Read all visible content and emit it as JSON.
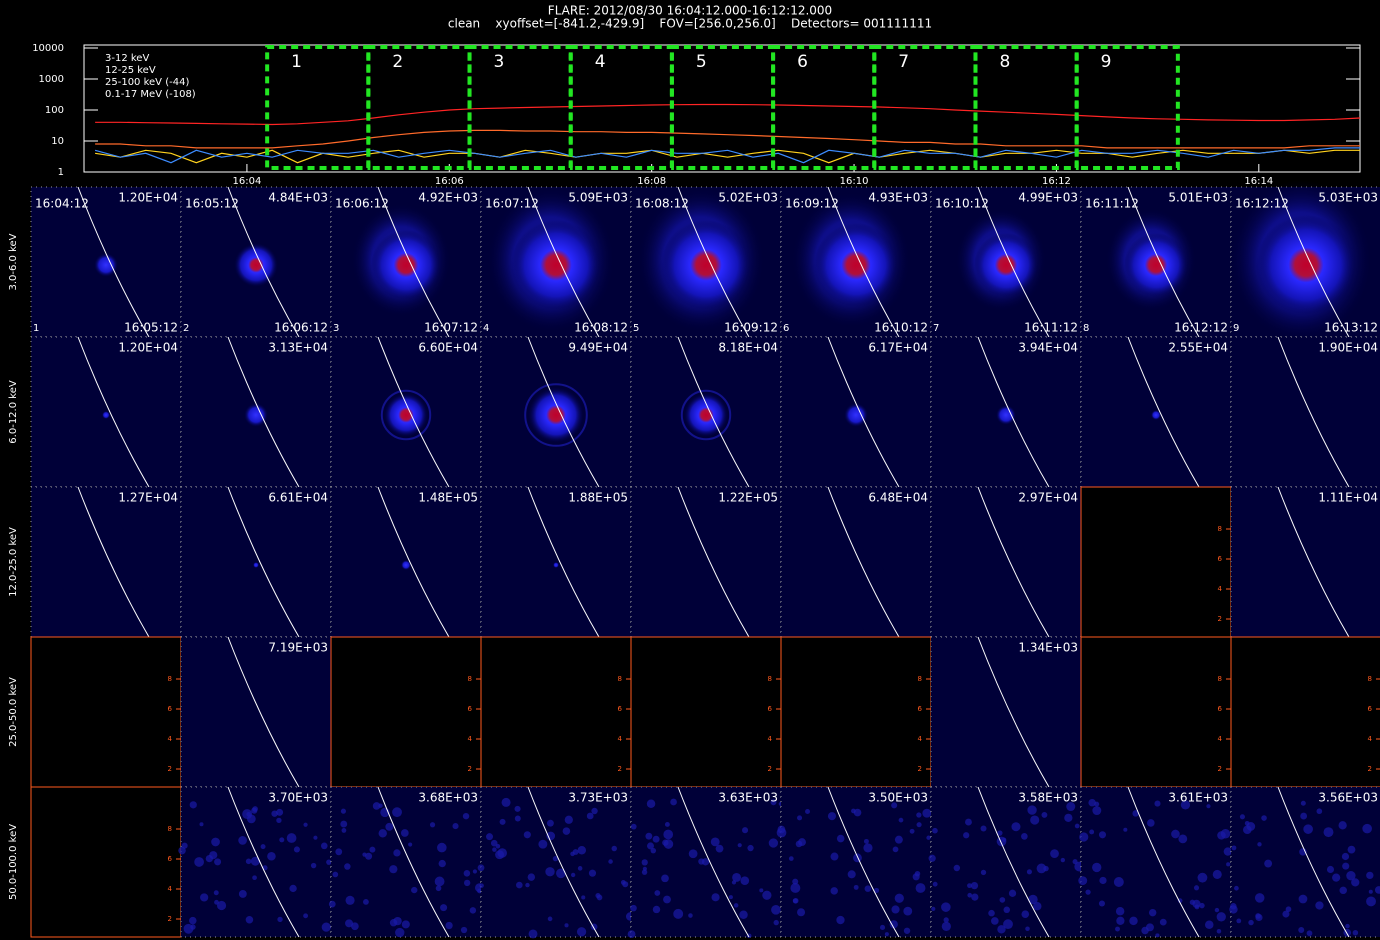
{
  "chart_data": {
    "type": "line",
    "title": "FLARE: 2012/08/30 16:04:12.000-16:12:12.000",
    "subtitle": "clean    xyoffset=[-841.2,-429.9]    FOV=[256.0,256.0]    Detectors= 001111111",
    "x": [
      2.5,
      2.75,
      3,
      3.25,
      3.5,
      3.75,
      4,
      4.25,
      4.5,
      4.75,
      5,
      5.25,
      5.5,
      5.75,
      6,
      6.25,
      6.5,
      6.75,
      7,
      7.25,
      7.5,
      7.75,
      8,
      8.25,
      8.5,
      8.75,
      9,
      9.25,
      9.5,
      9.75,
      10,
      10.25,
      10.5,
      10.75,
      11,
      11.25,
      11.5,
      11.75,
      12,
      12.25,
      12.5,
      12.75,
      13,
      13.25,
      13.5,
      13.75,
      14,
      14.25,
      14.5,
      14.75,
      15
    ],
    "series": [
      {
        "name": "3-12 keV",
        "color": "#ff2424",
        "values": [
          40,
          40,
          39,
          38,
          37,
          36,
          35,
          34,
          36,
          40,
          45,
          55,
          70,
          85,
          100,
          110,
          115,
          120,
          125,
          130,
          135,
          140,
          145,
          148,
          150,
          150,
          148,
          145,
          140,
          135,
          130,
          125,
          118,
          110,
          100,
          92,
          85,
          78,
          72,
          66,
          60,
          55,
          52,
          50,
          48,
          47,
          46,
          46,
          48,
          50,
          55
        ]
      },
      {
        "name": "12-25 keV",
        "color": "#ff6a2a",
        "values": [
          8,
          8,
          7,
          7,
          6,
          6,
          6,
          6,
          7,
          8,
          10,
          13,
          16,
          19,
          21,
          22,
          22,
          21,
          21,
          20,
          20,
          19,
          19,
          18,
          17,
          16,
          15,
          14,
          13,
          12,
          11,
          10,
          9,
          9,
          8,
          8,
          7,
          7,
          7,
          7,
          6,
          6,
          6,
          6,
          6,
          6,
          6,
          6,
          7,
          7,
          7
        ]
      },
      {
        "name": "25-100 keV (-44)",
        "color": "#ffd21e",
        "values": [
          4,
          3,
          5,
          4,
          2,
          4,
          3,
          5,
          2,
          4,
          3,
          4,
          5,
          3,
          4,
          4,
          3,
          5,
          4,
          3,
          4,
          4,
          5,
          3,
          4,
          3,
          4,
          5,
          4,
          2,
          4,
          3,
          4,
          5,
          4,
          3,
          4,
          4,
          5,
          4,
          4,
          3,
          4,
          5,
          4,
          4,
          4,
          5,
          4,
          5,
          5
        ]
      },
      {
        "name": "0.1-17 MeV (-108)",
        "color": "#3d8cff",
        "values": [
          5,
          3,
          4,
          2,
          5,
          3,
          4,
          3,
          5,
          4,
          4,
          5,
          3,
          4,
          5,
          4,
          3,
          4,
          5,
          3,
          4,
          3,
          5,
          4,
          4,
          5,
          3,
          4,
          2,
          5,
          4,
          3,
          5,
          4,
          4,
          3,
          5,
          4,
          3,
          5,
          4,
          4,
          5,
          4,
          3,
          5,
          4,
          5,
          5,
          6,
          6
        ]
      }
    ],
    "xlim": [
      2.39,
      15.0
    ],
    "xticks": [
      {
        "value": 4,
        "label": "16:04"
      },
      {
        "value": 6,
        "label": "16:06"
      },
      {
        "value": 8,
        "label": "16:08"
      },
      {
        "value": 10,
        "label": "16:10"
      },
      {
        "value": 12,
        "label": "16:12"
      },
      {
        "value": 14,
        "label": "16:14"
      }
    ],
    "ylim": [
      1,
      10000
    ],
    "yticks": [
      1,
      10,
      100,
      1000,
      10000
    ],
    "log_y": true,
    "legend": "upper left",
    "intervals": [
      {
        "label": "1",
        "start": 4.2,
        "end": 5.2
      },
      {
        "label": "2",
        "start": 5.2,
        "end": 6.2
      },
      {
        "label": "3",
        "start": 6.2,
        "end": 7.2
      },
      {
        "label": "4",
        "start": 7.2,
        "end": 8.2
      },
      {
        "label": "5",
        "start": 8.2,
        "end": 9.2
      },
      {
        "label": "6",
        "start": 9.2,
        "end": 10.2
      },
      {
        "label": "7",
        "start": 10.2,
        "end": 11.2
      },
      {
        "label": "8",
        "start": 11.2,
        "end": 12.2
      },
      {
        "label": "9",
        "start": 12.2,
        "end": 13.2
      }
    ]
  },
  "image_grid": {
    "rows": [
      {
        "label": "3.0-6.0 keV",
        "cells": [
          {
            "start": "16:04:12",
            "peak": "1.20E+04",
            "index": "1",
            "end": "16:05:12"
          },
          {
            "start": "16:05:12",
            "peak": "4.84E+03",
            "index": "2",
            "end": "16:06:12"
          },
          {
            "start": "16:06:12",
            "peak": "4.92E+03",
            "index": "3",
            "end": "16:07:12"
          },
          {
            "start": "16:07:12",
            "peak": "5.09E+03",
            "index": "4",
            "end": "16:08:12"
          },
          {
            "start": "16:08:12",
            "peak": "5.02E+03",
            "index": "5",
            "end": "16:09:12"
          },
          {
            "start": "16:09:12",
            "peak": "4.93E+03",
            "index": "6",
            "end": "16:10:12"
          },
          {
            "start": "16:10:12",
            "peak": "4.99E+03",
            "index": "7",
            "end": "16:11:12"
          },
          {
            "start": "16:11:12",
            "peak": "5.01E+03",
            "index": "8",
            "end": "16:12:12"
          },
          {
            "start": "16:12:12",
            "peak": "5.03E+03",
            "index": "9",
            "end": "16:13:12"
          }
        ]
      },
      {
        "label": "6.0-12.0 keV",
        "cells": [
          {
            "peak": "1.20E+04"
          },
          {
            "peak": "3.13E+04"
          },
          {
            "peak": "6.60E+04"
          },
          {
            "peak": "9.49E+04"
          },
          {
            "peak": "8.18E+04"
          },
          {
            "peak": "6.17E+04"
          },
          {
            "peak": "3.94E+04"
          },
          {
            "peak": "2.55E+04"
          },
          {
            "peak": "1.90E+04"
          }
        ]
      },
      {
        "label": "12.0-25.0 keV",
        "cells": [
          {
            "peak": "1.27E+04"
          },
          {
            "peak": "6.61E+04"
          },
          {
            "peak": "1.48E+05"
          },
          {
            "peak": "1.88E+05"
          },
          {
            "peak": "1.22E+05"
          },
          {
            "peak": "6.48E+04"
          },
          {
            "peak": "2.97E+04"
          },
          null,
          {
            "peak": "1.11E+04"
          }
        ]
      },
      {
        "label": "25.0-50.0 keV",
        "cells": [
          null,
          {
            "peak": "7.19E+03"
          },
          null,
          null,
          null,
          null,
          {
            "peak": "1.34E+03"
          },
          null,
          null
        ]
      },
      {
        "label": "50.0-100.0 keV",
        "cells": [
          null,
          {
            "peak": "3.70E+03"
          },
          {
            "peak": "3.68E+03"
          },
          {
            "peak": "3.73E+03"
          },
          {
            "peak": "3.63E+03"
          },
          {
            "peak": "3.50E+03"
          },
          {
            "peak": "3.58E+03"
          },
          {
            "peak": "3.61E+03"
          },
          {
            "peak": "3.56E+03"
          }
        ]
      }
    ]
  },
  "blank_panel_ticks": [
    "2",
    "4",
    "6",
    "8"
  ]
}
